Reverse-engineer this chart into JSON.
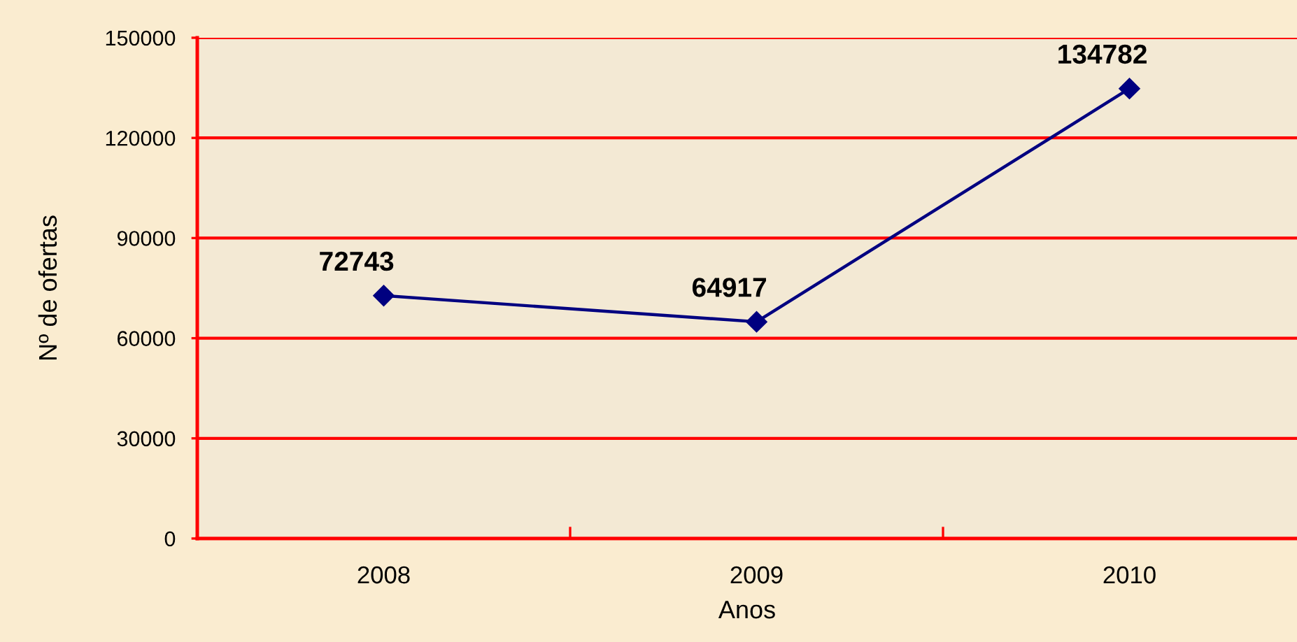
{
  "chart_data": {
    "type": "line",
    "xlabel": "Anos",
    "ylabel": "Nº de ofertas",
    "categories": [
      "2008",
      "2009",
      "2010"
    ],
    "series": [
      {
        "color": "#000080",
        "values": [
          72743,
          64917,
          134782
        ]
      }
    ],
    "ylim": [
      0,
      150000
    ],
    "yticks": [
      0,
      30000,
      60000,
      90000,
      120000,
      150000
    ],
    "grid": "y",
    "marker": "diamond",
    "line_style": "solid",
    "data_labels": true
  }
}
